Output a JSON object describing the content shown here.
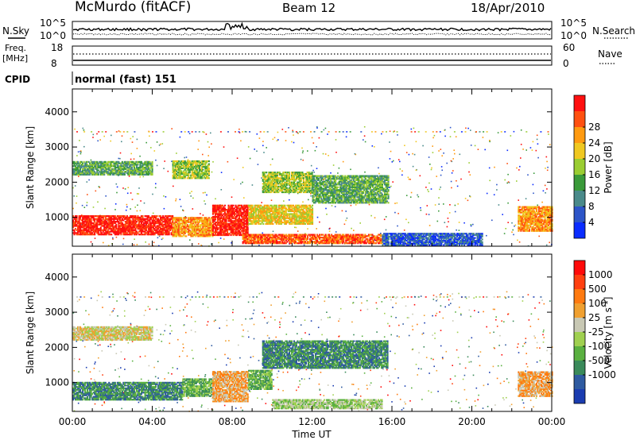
{
  "header": {
    "title": "McMurdo (fitACF)",
    "beam": "Beam 12",
    "date": "18/Apr/2010"
  },
  "top_panels": {
    "nsky_label": "N.Sky",
    "nsearch_label": "N.Search",
    "noise_ticks_left": [
      "10^5",
      "10^0"
    ],
    "noise_ticks_right": [
      "10^5",
      "10^0"
    ],
    "freq_label": "Freq.",
    "freq_unit": "[MHz]",
    "freq_ticks": [
      "18",
      "8"
    ],
    "nave_label": "Nave",
    "nave_ticks": [
      "60",
      "0"
    ],
    "cpid_label": "CPID",
    "cpid_value": "normal (fast) 151"
  },
  "chart_data": [
    {
      "type": "heatmap",
      "name": "power",
      "ylabel": "Slant Range [km]",
      "xlabel": "",
      "x_ticks": [
        "00:00",
        "04:00",
        "08:00",
        "12:00",
        "16:00",
        "20:00",
        "00:00"
      ],
      "y_ticks": [
        1000,
        2000,
        3000,
        4000
      ],
      "ylim": [
        180,
        4650
      ],
      "xlim_hours": [
        0,
        24
      ],
      "colorbar": {
        "label": "Power [dB]",
        "ticks": [
          "4",
          "8",
          "12",
          "16",
          "20",
          "24",
          "28"
        ],
        "colors": [
          "#0a2cff",
          "#2d55c8",
          "#4a8a8a",
          "#3a9a3a",
          "#9acd32",
          "#f0c820",
          "#ff9a10",
          "#ff5010",
          "#ff1010"
        ]
      },
      "regions": [
        {
          "t0": 0.0,
          "t1": 5.0,
          "r0": 500,
          "r1": 1050,
          "level": 8
        },
        {
          "t0": 5.0,
          "t1": 7.0,
          "r0": 450,
          "r1": 1000,
          "level": 6
        },
        {
          "t0": 7.0,
          "t1": 8.8,
          "r0": 480,
          "r1": 1350,
          "level": 8
        },
        {
          "t0": 8.8,
          "t1": 12.0,
          "r0": 800,
          "r1": 1350,
          "level": 5
        },
        {
          "t0": 8.5,
          "t1": 15.5,
          "r0": 250,
          "r1": 500,
          "level": 7
        },
        {
          "t0": 15.5,
          "t1": 20.5,
          "r0": 200,
          "r1": 550,
          "level": 1
        },
        {
          "t0": 0.0,
          "t1": 4.0,
          "r0": 2200,
          "r1": 2600,
          "level": 3
        },
        {
          "t0": 5.0,
          "t1": 6.8,
          "r0": 2100,
          "r1": 2600,
          "level": 4
        },
        {
          "t0": 9.5,
          "t1": 12.0,
          "r0": 1700,
          "r1": 2300,
          "level": 4
        },
        {
          "t0": 12.0,
          "t1": 15.8,
          "r0": 1400,
          "r1": 2200,
          "level": 3
        },
        {
          "t0": 22.3,
          "t1": 24.0,
          "r0": 600,
          "r1": 1300,
          "level": 6
        }
      ]
    },
    {
      "type": "heatmap",
      "name": "velocity",
      "ylabel": "Slant Range [km]",
      "xlabel": "Time UT",
      "x_ticks": [
        "00:00",
        "04:00",
        "08:00",
        "12:00",
        "16:00",
        "20:00",
        "00:00"
      ],
      "y_ticks": [
        1000,
        2000,
        3000,
        4000
      ],
      "ylim": [
        180,
        4650
      ],
      "xlim_hours": [
        0,
        24
      ],
      "colorbar": {
        "label": "Velocity [m s^-1]",
        "ticks": [
          "1000",
          "500",
          "100",
          "25",
          "-25",
          "-100",
          "-500",
          "-1000"
        ],
        "colors": [
          "#1a3cb0",
          "#2e5aa0",
          "#3a8a5a",
          "#5ab040",
          "#a0d050",
          "#c8c8b4",
          "#f0a030",
          "#ff7a10",
          "#ff4010",
          "#ff0a0a"
        ]
      },
      "regions": [
        {
          "t0": 0.0,
          "t1": 5.5,
          "r0": 500,
          "r1": 1000,
          "level": 2
        },
        {
          "t0": 5.5,
          "t1": 7.0,
          "r0": 600,
          "r1": 1100,
          "level": 3
        },
        {
          "t0": 7.0,
          "t1": 8.8,
          "r0": 450,
          "r1": 1300,
          "level": 6
        },
        {
          "t0": 8.8,
          "t1": 10.0,
          "r0": 800,
          "r1": 1350,
          "level": 3
        },
        {
          "t0": 10.0,
          "t1": 15.5,
          "r0": 250,
          "r1": 500,
          "level": 4
        },
        {
          "t0": 0.0,
          "t1": 4.0,
          "r0": 2200,
          "r1": 2600,
          "level": 5
        },
        {
          "t0": 9.5,
          "t1": 15.8,
          "r0": 1400,
          "r1": 2200,
          "level": 2
        },
        {
          "t0": 22.3,
          "t1": 24.0,
          "r0": 600,
          "r1": 1300,
          "level": 6
        }
      ]
    }
  ]
}
